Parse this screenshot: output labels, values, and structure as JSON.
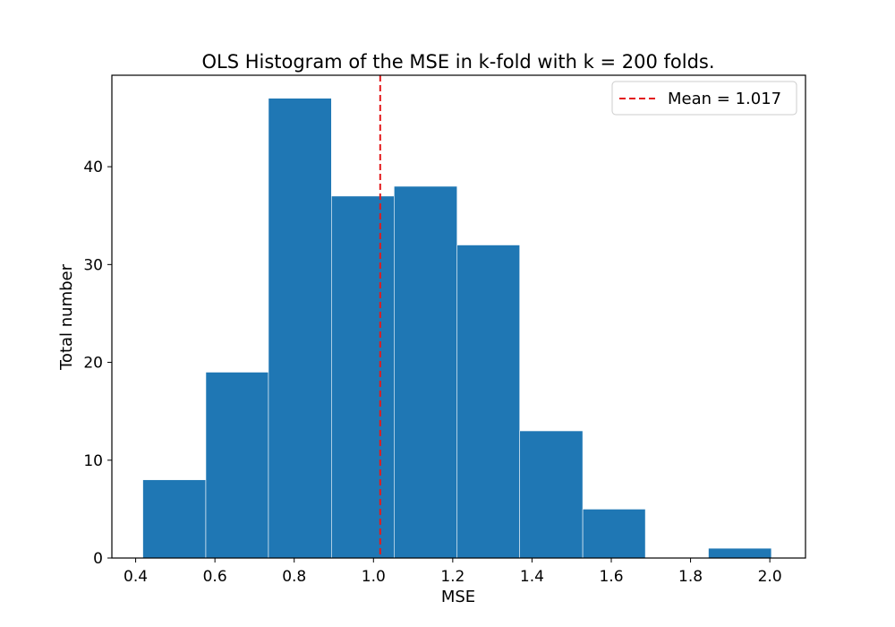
{
  "chart_data": {
    "type": "bar",
    "title": "OLS Histogram of the MSE in k-fold with k = 200 folds.",
    "xlabel": "MSE",
    "ylabel": "Total number",
    "xlim": [
      0.34,
      2.09
    ],
    "ylim": [
      0,
      49.35
    ],
    "xticks": [
      "0.4",
      "0.6",
      "0.8",
      "1.0",
      "1.2",
      "1.4",
      "1.6",
      "1.8",
      "2.0"
    ],
    "yticks": [
      "0",
      "10",
      "20",
      "30",
      "40"
    ],
    "bins": [
      {
        "x0": 0.418,
        "x1": 0.577,
        "count": 8
      },
      {
        "x0": 0.577,
        "x1": 0.735,
        "count": 19
      },
      {
        "x0": 0.735,
        "x1": 0.894,
        "count": 47
      },
      {
        "x0": 0.894,
        "x1": 1.052,
        "count": 37
      },
      {
        "x0": 1.052,
        "x1": 1.211,
        "count": 38
      },
      {
        "x0": 1.211,
        "x1": 1.369,
        "count": 32
      },
      {
        "x0": 1.369,
        "x1": 1.528,
        "count": 13
      },
      {
        "x0": 1.528,
        "x1": 1.686,
        "count": 5
      },
      {
        "x0": 1.686,
        "x1": 1.845,
        "count": 0
      },
      {
        "x0": 1.845,
        "x1": 2.004,
        "count": 1
      }
    ],
    "mean_line": {
      "x": 1.017,
      "label": "Mean = 1.017",
      "color": "#e31a1c",
      "style": "dashed"
    },
    "bar_color": "#1f77b4",
    "legend": {
      "placement": "top-right",
      "entries": [
        "Mean = 1.017"
      ]
    },
    "grid": false
  }
}
